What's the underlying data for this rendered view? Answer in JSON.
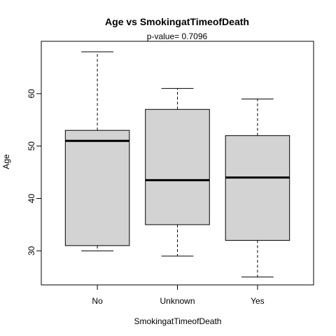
{
  "chart_data": {
    "type": "boxplot",
    "title": "Age  vs  SmokingatTimeofDeath",
    "subtitle": "p-value= 0.7096",
    "xlabel": "SmokingatTimeofDeath",
    "ylabel": "Age",
    "categories": [
      "No",
      "Unknown",
      "Yes"
    ],
    "ylim": [
      23.5,
      70
    ],
    "y_ticks": [
      30,
      40,
      50,
      60
    ],
    "grid": false,
    "legend": "none",
    "colors": {
      "box_fill": "#d3d3d3",
      "stroke": "#000000",
      "background": "#ffffff"
    },
    "boxes": [
      {
        "category": "No",
        "min": 30,
        "q1": 31,
        "median": 51,
        "q3": 53,
        "max": 68
      },
      {
        "category": "Unknown",
        "min": 29,
        "q1": 35,
        "median": 43.5,
        "q3": 57,
        "max": 61
      },
      {
        "category": "Yes",
        "min": 25,
        "q1": 32,
        "median": 44,
        "q3": 52,
        "max": 59
      }
    ]
  }
}
